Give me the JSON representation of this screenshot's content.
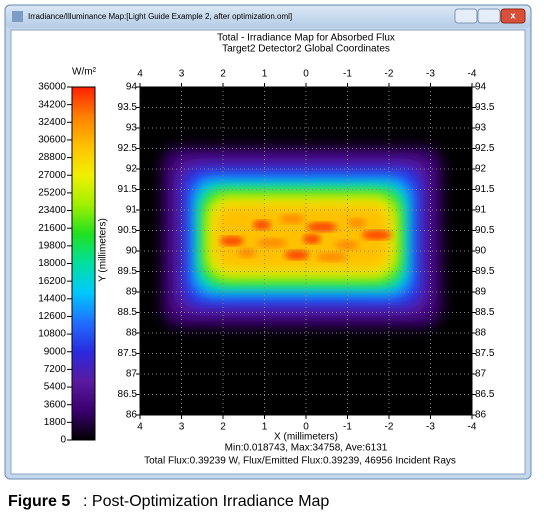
{
  "window": {
    "title": "Irradiance/Illuminance Map:[Light Guide Example 2, after optimization.oml]"
  },
  "chart_data": {
    "type": "heatmap",
    "title": "Total - Irradiance Map for Absorbed Flux",
    "subtitle": "Target2 Detector2    Global Coordinates",
    "xlabel": "X (millimeters)",
    "ylabel": "Y (millimeters)",
    "xlim": [
      4,
      -4
    ],
    "xticks": [
      4,
      3,
      2,
      1,
      0,
      -1,
      -2,
      -3,
      -4
    ],
    "ylim": [
      86,
      94
    ],
    "yticks": [
      86,
      86.5,
      87,
      87.5,
      88,
      88.5,
      89,
      89.5,
      90,
      90.5,
      91,
      91.5,
      92,
      92.5,
      93,
      93.5,
      94
    ],
    "grid": true,
    "colorbar": {
      "label": "W/m²",
      "lim": [
        0,
        36000
      ],
      "ticks": [
        0,
        1800,
        3600,
        5400,
        7200,
        9000,
        10800,
        12600,
        14400,
        16200,
        18000,
        19800,
        21600,
        23400,
        25200,
        27000,
        28800,
        30600,
        32400,
        34200,
        36000
      ],
      "colors": [
        "#000000",
        "#3a0070",
        "#5a1aa0",
        "#2a2adf",
        "#1f6fff",
        "#00c8ff",
        "#00e0a0",
        "#20e020",
        "#a0f000",
        "#f0f000",
        "#ffc000",
        "#ff8000",
        "#ff2000"
      ]
    },
    "stats": "Min:0.018743, Max:34758, Ave:6131",
    "footer": "Total Flux:0.39239 W, Flux/Emitted Flux:0.39239, 46956 Incident Rays"
  },
  "caption": {
    "label": "Figure 5",
    "text": ": Post-Optimization Irradiance Map"
  }
}
